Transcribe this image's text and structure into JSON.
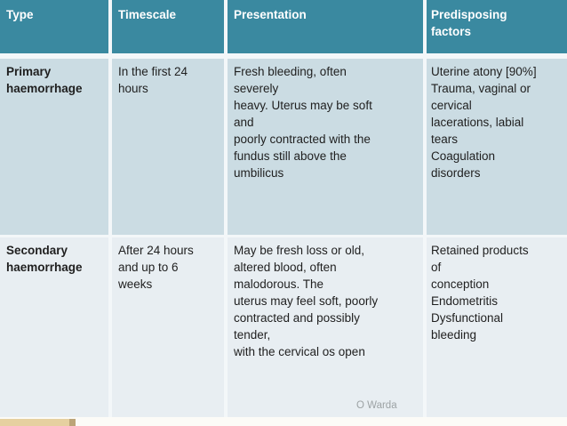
{
  "table": {
    "columns": [
      {
        "label": "Type"
      },
      {
        "label": "Timescale"
      },
      {
        "label": "Presentation"
      },
      {
        "label": "Predisposing\nfactors"
      }
    ],
    "rows": [
      {
        "type": "Primary\nhaemorrhage",
        "timescale": "In the first 24\nhours",
        "presentation": "Fresh bleeding, often\nseverely\nheavy. Uterus may be soft\nand\npoorly contracted with the\nfundus still above the\numbilicus",
        "predisposing": "Uterine atony [90%]\nTrauma, vaginal or\ncervical\nlacerations, labial\ntears\nCoagulation\ndisorders"
      },
      {
        "type": "Secondary\nhaemorrhage",
        "timescale": "After 24 hours\nand up to 6\nweeks",
        "presentation": "May be fresh loss or old,\naltered blood, often\nmalodorous. The\nuterus may feel soft, poorly\ncontracted and possibly\ntender,\nwith the cervical os open",
        "predisposing": "Retained products\nof\nconception\nEndometritis\nDysfunctional\nbleeding"
      }
    ]
  },
  "footer": {
    "credit": "O Warda"
  },
  "colors": {
    "header_bg": "#3A89A0",
    "header_text": "#FFFFFF",
    "row_primary_bg": "#CBDCE3",
    "row_secondary_bg": "#E8EEF2",
    "grid_line": "#F3F7F9",
    "body_text": "#1F1F1F",
    "credit_text": "#9DA3A5",
    "accent_bar": "#E6D0A0",
    "accent_bar_cap": "#BCA478",
    "bottom_strip_bg": "#FCFBF7"
  }
}
